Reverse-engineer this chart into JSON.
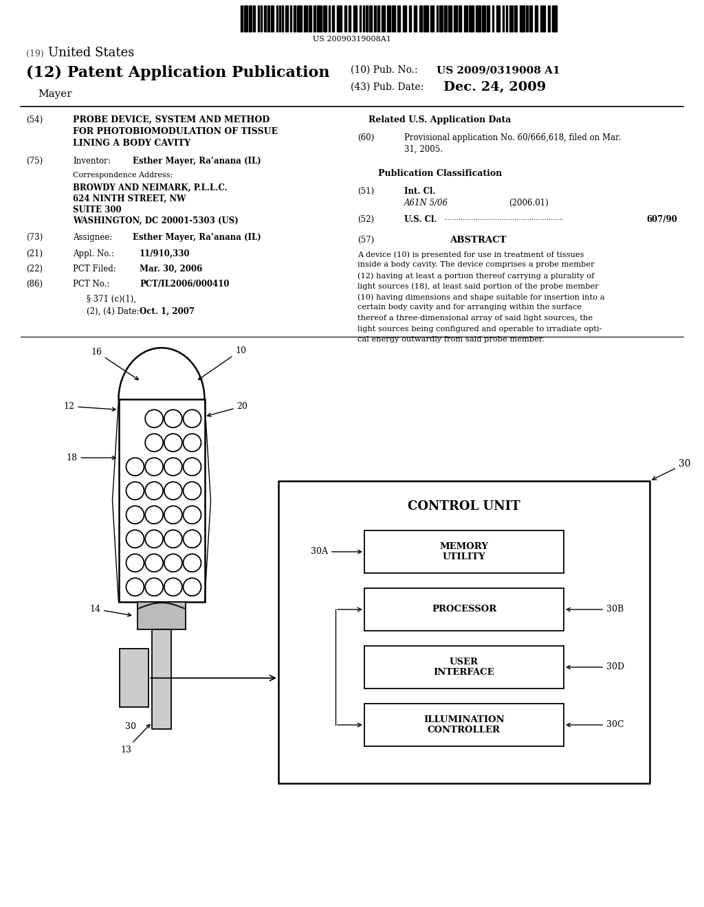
{
  "bg_color": "#ffffff",
  "barcode_text": "US 20090319008A1",
  "title_19_prefix": "(19) ",
  "title_19_text": "United States",
  "title_12": "(12) Patent Application Publication",
  "title_mayer": "Mayer",
  "pub_no_label": "(10) Pub. No.: ",
  "pub_no_val": "US 2009/0319008 A1",
  "pub_date_label": "(43) Pub. Date:",
  "pub_date_val": "Dec. 24, 2009",
  "field54_label": "(54)",
  "field54_lines": [
    "PROBE DEVICE, SYSTEM AND METHOD",
    "FOR PHOTOBIOMODULATION OF TISSUE",
    "LINING A BODY CAVITY"
  ],
  "field75_label": "(75)",
  "field75_key": "Inventor:",
  "field75_val": "Esther Mayer, Ra’anana (IL)",
  "corr_label": "Correspondence Address:",
  "corr_lines": [
    "BROWDY AND NEIMARK, P.L.L.C.",
    "624 NINTH STREET, NW",
    "SUITE 300",
    "WASHINGTON, DC 20001-5303 (US)"
  ],
  "field73_label": "(73)",
  "field73_key": "Assignee:",
  "field73_val": "Esther Mayer, Ra’anana (IL)",
  "field21_label": "(21)",
  "field21_key": "Appl. No.:",
  "field21_val": "11/910,330",
  "field22_label": "(22)",
  "field22_key": "PCT Filed:",
  "field22_val": "Mar. 30, 2006",
  "field86_label": "(86)",
  "field86_key": "PCT No.:",
  "field86_val": "PCT/IL2006/000410",
  "field371_line1": "§ 371 (c)(1),",
  "field371_line2": "(2), (4) Date:",
  "field371_val": "Oct. 1, 2007",
  "related_title": "Related U.S. Application Data",
  "field60_label": "(60)",
  "field60_lines": [
    "Provisional application No. 60/666,618, filed on Mar.",
    "31, 2005."
  ],
  "pub_class_title": "Publication Classification",
  "field51_label": "(51)",
  "field51_key": "Int. Cl.",
  "field51_class": "A61N 5/06",
  "field51_year": "(2006.01)",
  "field52_label": "(52)",
  "field52_key": "U.S. Cl.",
  "field52_dots": "........................................................",
  "field52_val": "607/90",
  "abstract_label": "(57)",
  "abstract_title": "ABSTRACT",
  "abstract_lines": [
    "A device (10) is presented for use in treatment of tissues",
    "inside a body cavity. The device comprises a probe member",
    "(12) having at least a portion thereof carrying a plurality of",
    "light sources (18), at least said portion of the probe member",
    "(10) having dimensions and shape suitable for insertion into a",
    "certain body cavity and for arranging within the surface",
    "thereof a three-dimensional array of said light sources, the",
    "light sources being configured and operable to irradiate opti-",
    "cal energy outwardly from said probe member."
  ]
}
